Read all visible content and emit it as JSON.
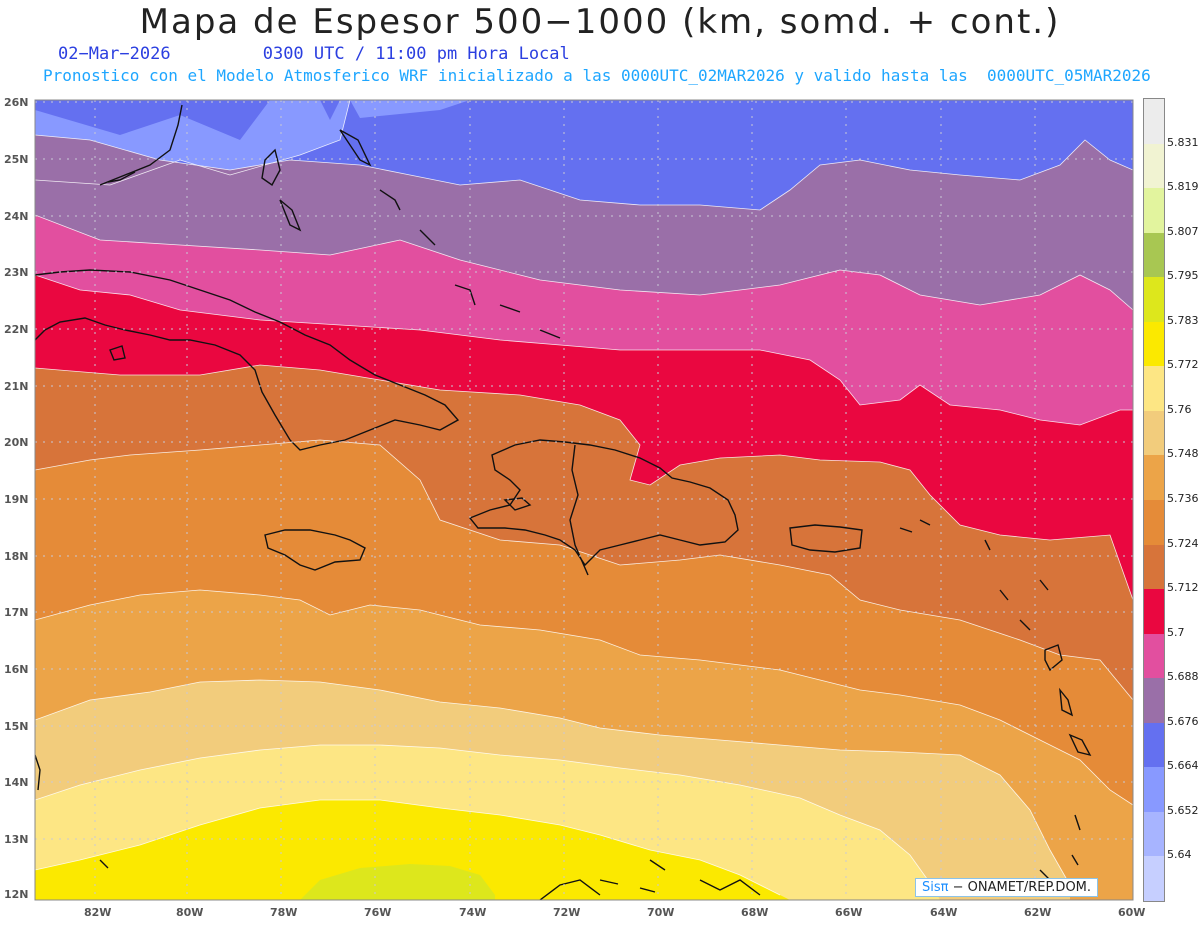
{
  "header": {
    "title": "Mapa de Espesor 500−1000 (km, somd. + cont.)",
    "date": "02−Mar−2026",
    "time": "0300 UTC / 11:00 pm Hora Local",
    "subtitle": "Pronostico con el Modelo Atmosferico WRF inicializado a las 0000UTC_02MAR2026 y valido hasta las  0000UTC_05MAR2026"
  },
  "map": {
    "lat_labels": [
      "26N",
      "25N",
      "24N",
      "23N",
      "22N",
      "21N",
      "20N",
      "19N",
      "18N",
      "17N",
      "16N",
      "15N",
      "14N",
      "13N",
      "12N"
    ],
    "lon_labels": [
      "82W",
      "80W",
      "78W",
      "76W",
      "74W",
      "72W",
      "70W",
      "68W",
      "66W",
      "64W",
      "62W",
      "60W"
    ],
    "bands": [
      {
        "color": "#8899ff"
      },
      {
        "color": "#6470f0"
      },
      {
        "color": "#9a6fa8"
      },
      {
        "color": "#e24f9f"
      },
      {
        "color": "#ea0740"
      },
      {
        "color": "#d7743a"
      },
      {
        "color": "#e58b38"
      },
      {
        "color": "#eca448"
      },
      {
        "color": "#f2cc7c"
      },
      {
        "color": "#fde684"
      },
      {
        "color": "#fbe900"
      },
      {
        "color": "#dde71c"
      }
    ]
  },
  "legend": {
    "items": [
      {
        "color": "#ececec",
        "label": "5.831"
      },
      {
        "color": "#f1f3d2",
        "label": "5.819"
      },
      {
        "color": "#e2f49e",
        "label": "5.807"
      },
      {
        "color": "#a8c752",
        "label": "5.795"
      },
      {
        "color": "#dde71c",
        "label": "5.783"
      },
      {
        "color": "#fbe900",
        "label": "5.772"
      },
      {
        "color": "#fde684",
        "label": "5.76"
      },
      {
        "color": "#f2cc7c",
        "label": "5.748"
      },
      {
        "color": "#eca448",
        "label": "5.736"
      },
      {
        "color": "#e58b38",
        "label": "5.724"
      },
      {
        "color": "#d7743a",
        "label": "5.712"
      },
      {
        "color": "#ea0740",
        "label": "5.7"
      },
      {
        "color": "#e24f9f",
        "label": "5.688"
      },
      {
        "color": "#9a6fa8",
        "label": "5.676"
      },
      {
        "color": "#6470f0",
        "label": "5.664"
      },
      {
        "color": "#8899ff",
        "label": "5.652"
      },
      {
        "color": "#a7b4ff",
        "label": "5.64"
      },
      {
        "color": "#c6cfff",
        "label": ""
      }
    ]
  },
  "credit": {
    "brand": "Sisπ",
    "text": "− ONAMET/REP.DOM."
  }
}
